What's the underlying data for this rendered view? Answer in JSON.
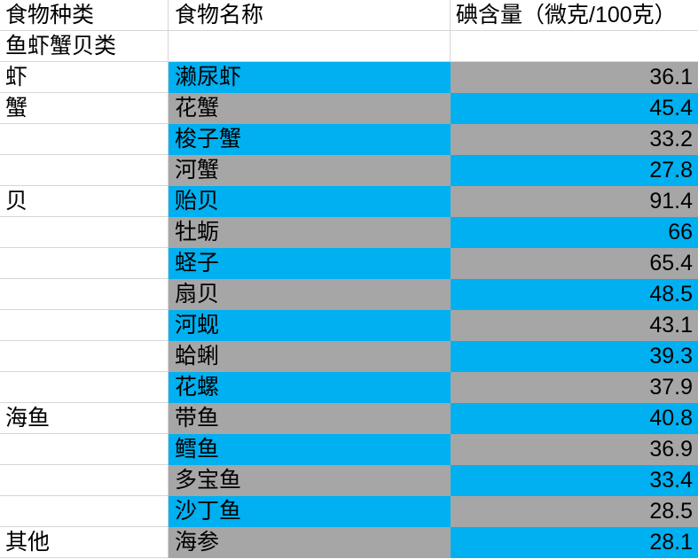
{
  "table": {
    "title": "iodine-content-spreadsheet",
    "headers": {
      "category": "食物种类",
      "name": "食物名称",
      "value": "碘含量（微克/100克）"
    },
    "group_label": "鱼虾蟹贝类",
    "rows": [
      {
        "category": "虾",
        "name": "濑尿虾",
        "value": "36.1"
      },
      {
        "category": "蟹",
        "name": "花蟹",
        "value": "45.4"
      },
      {
        "category": "",
        "name": "梭子蟹",
        "value": "33.2"
      },
      {
        "category": "",
        "name": "河蟹",
        "value": "27.8"
      },
      {
        "category": "贝",
        "name": "贻贝",
        "value": "91.4"
      },
      {
        "category": "",
        "name": "牡蛎",
        "value": "66"
      },
      {
        "category": "",
        "name": "蛏子",
        "value": "65.4"
      },
      {
        "category": "",
        "name": "扇贝",
        "value": "48.5"
      },
      {
        "category": "",
        "name": "河蚬",
        "value": "43.1"
      },
      {
        "category": "",
        "name": "蛤蜊",
        "value": "39.3"
      },
      {
        "category": "",
        "name": "花螺",
        "value": "37.9"
      },
      {
        "category": "海鱼",
        "name": "带鱼",
        "value": "40.8"
      },
      {
        "category": "",
        "name": "鳕鱼",
        "value": "36.9"
      },
      {
        "category": "",
        "name": "多宝鱼",
        "value": "33.4"
      },
      {
        "category": "",
        "name": "沙丁鱼",
        "value": "28.5"
      },
      {
        "category": "其他",
        "name": "海参",
        "value": "28.1"
      }
    ],
    "colors": {
      "fill_cyan": "#00B0F0",
      "fill_gray": "#A6A6A6",
      "gridline": "#D6D6D6",
      "text": "#000000"
    }
  }
}
